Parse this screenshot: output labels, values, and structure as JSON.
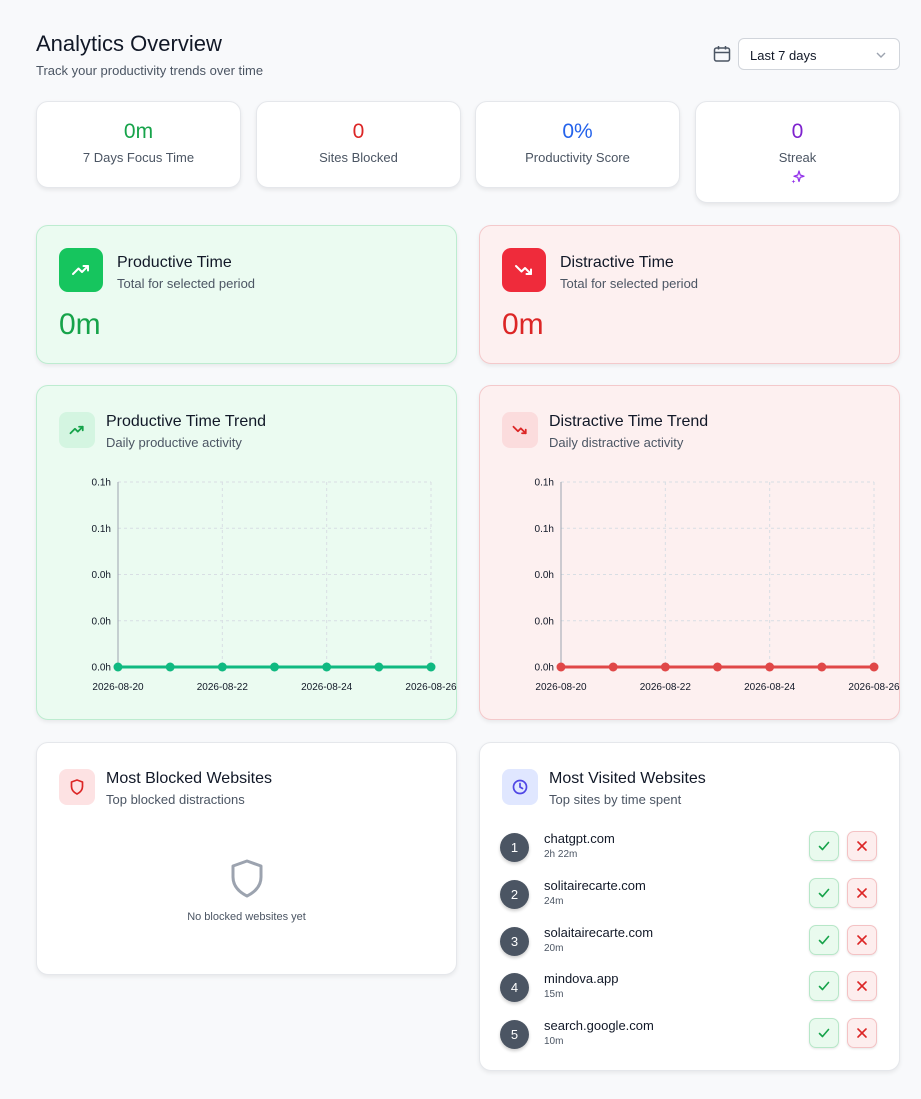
{
  "header": {
    "title": "Analytics Overview",
    "subtitle": "Track your productivity trends over time",
    "range_value": "Last 7 days"
  },
  "stats": [
    {
      "value": "0m",
      "label": "7 Days Focus Time",
      "color": "#16a34a"
    },
    {
      "value": "0",
      "label": "Sites Blocked",
      "color": "#dc2626"
    },
    {
      "value": "0%",
      "label": "Productivity Score",
      "color": "#2563eb"
    },
    {
      "value": "0",
      "label": "Streak",
      "color": "#7e22ce"
    }
  ],
  "productive": {
    "title": "Productive Time",
    "subtitle": "Total for selected period",
    "value": "0m",
    "accent": "#16a34a"
  },
  "distractive": {
    "title": "Distractive Time",
    "subtitle": "Total for selected period",
    "value": "0m",
    "accent": "#dc2626"
  },
  "productive_trend": {
    "title": "Productive Time Trend",
    "subtitle": "Daily productive activity"
  },
  "distractive_trend": {
    "title": "Distractive Time Trend",
    "subtitle": "Daily distractive activity"
  },
  "chart_data": [
    {
      "type": "line",
      "x": [
        "2026-08-20",
        "2026-08-21",
        "2026-08-22",
        "2026-08-23",
        "2026-08-24",
        "2026-08-25",
        "2026-08-26"
      ],
      "x_tick_labels": [
        "2026-08-20",
        "2026-08-22",
        "2026-08-24",
        "2026-08-26"
      ],
      "y_tick_labels": [
        "0.1h",
        "0.1h",
        "0.0h",
        "0.0h",
        "0.0h"
      ],
      "series": [
        {
          "values": [
            0,
            0,
            0,
            0,
            0,
            0,
            0
          ],
          "color": "#10b981"
        }
      ],
      "ylim": [
        0,
        0.1
      ],
      "grid": true
    },
    {
      "type": "line",
      "x": [
        "2026-08-20",
        "2026-08-21",
        "2026-08-22",
        "2026-08-23",
        "2026-08-24",
        "2026-08-25",
        "2026-08-26"
      ],
      "x_tick_labels": [
        "2026-08-20",
        "2026-08-22",
        "2026-08-24",
        "2026-08-26"
      ],
      "y_tick_labels": [
        "0.1h",
        "0.1h",
        "0.0h",
        "0.0h",
        "0.0h"
      ],
      "series": [
        {
          "values": [
            0,
            0,
            0,
            0,
            0,
            0,
            0
          ],
          "color": "#e04848"
        }
      ],
      "ylim": [
        0,
        0.1
      ],
      "grid": true
    }
  ],
  "blocked": {
    "title": "Most Blocked Websites",
    "subtitle": "Top blocked distractions",
    "empty_text": "No blocked websites yet"
  },
  "visited": {
    "title": "Most Visited Websites",
    "subtitle": "Top sites by time spent",
    "items": [
      {
        "rank": "1",
        "site": "chatgpt.com",
        "time": "2h 22m"
      },
      {
        "rank": "2",
        "site": "solitairecarte.com",
        "time": "24m"
      },
      {
        "rank": "3",
        "site": "solaitairecarte.com",
        "time": "20m"
      },
      {
        "rank": "4",
        "site": "mindova.app",
        "time": "15m"
      },
      {
        "rank": "5",
        "site": "search.google.com",
        "time": "10m"
      }
    ]
  },
  "icons": {
    "calendar": "calendar-icon",
    "chevron": "chevron-down-icon",
    "sparkle": "sparkle-icon",
    "trend_up": "trend-up-icon",
    "trend_down": "trend-down-icon",
    "shield": "shield-icon",
    "clock": "clock-icon",
    "check": "check-icon",
    "close": "close-icon"
  }
}
